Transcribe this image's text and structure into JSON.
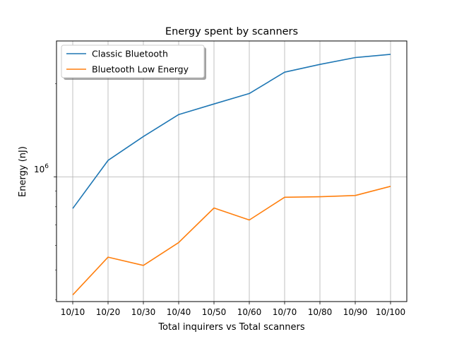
{
  "chart_data": {
    "type": "line",
    "title": "Energy spent by scanners",
    "xlabel": "Total inquirers vs Total scanners",
    "ylabel": "Energy (nJ)",
    "yscale": "log",
    "ytick_label_base": "10",
    "ytick_label_exp": "6",
    "ytick_value": 1000000,
    "ylim": [
      395000,
      2750000
    ],
    "grid": true,
    "legend_position": "top-left",
    "categories": [
      "10/10",
      "10/20",
      "10/30",
      "10/40",
      "10/50",
      "10/60",
      "10/70",
      "10/80",
      "10/90",
      "10/100"
    ],
    "series": [
      {
        "name": "Classic Bluetooth",
        "color": "#1f77b4",
        "values": [
          790000,
          1130000,
          1350000,
          1590000,
          1720000,
          1860000,
          2180000,
          2310000,
          2430000,
          2490000
        ]
      },
      {
        "name": "Bluetooth Low Energy",
        "color": "#ff7f0e",
        "values": [
          415000,
          550000,
          517000,
          613000,
          793000,
          725000,
          859000,
          862000,
          870000,
          932000
        ]
      }
    ]
  }
}
